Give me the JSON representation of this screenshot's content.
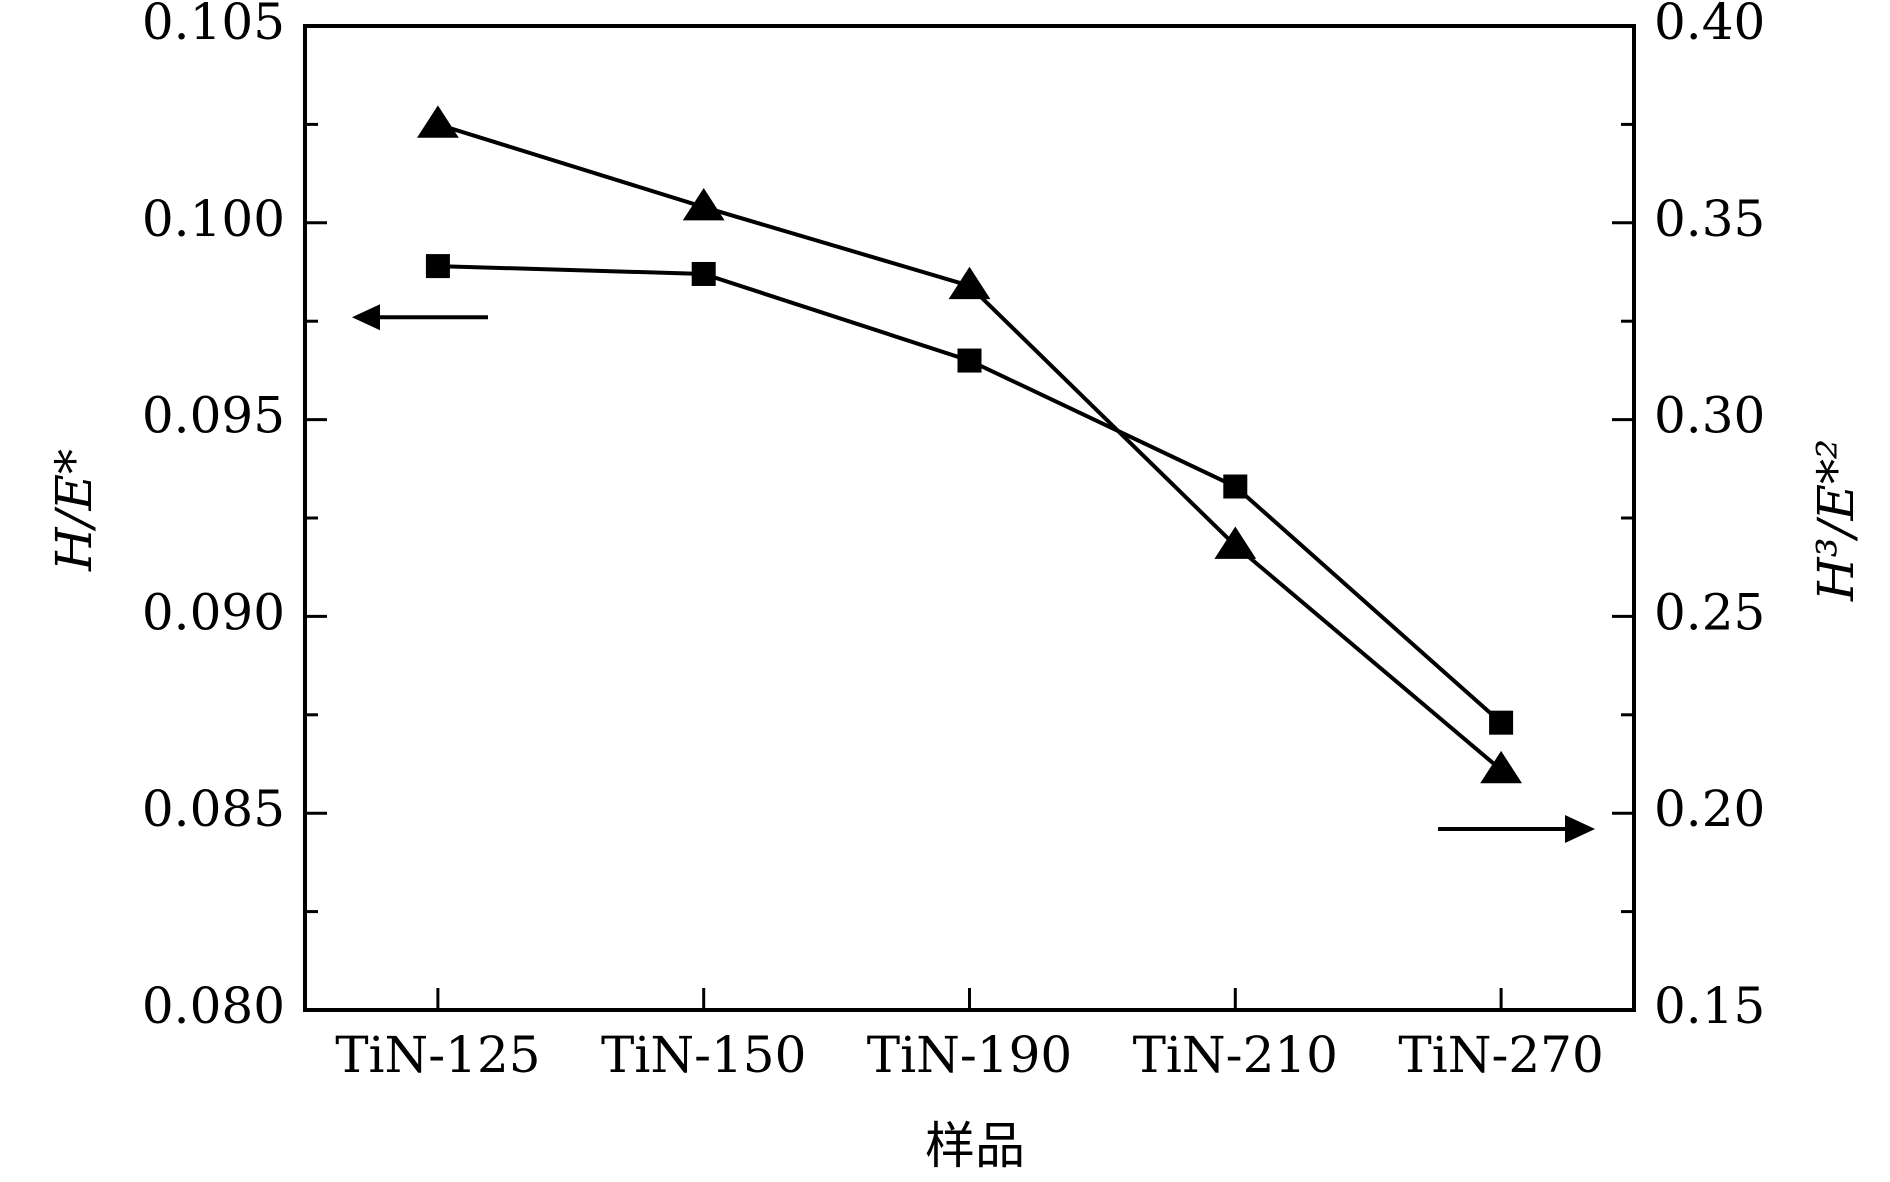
{
  "chart_data": {
    "type": "line",
    "categories": [
      "TiN-125",
      "TiN-150",
      "TiN-190",
      "TiN-210",
      "TiN-270"
    ],
    "xlabel": "样品",
    "ylabel_left": "H/E*",
    "ylabel_right": "H³/E*²",
    "ylim_left": [
      0.08,
      0.105
    ],
    "ylim_right": [
      0.15,
      0.4
    ],
    "yticks_left": [
      "0.080",
      "0.085",
      "0.090",
      "0.095",
      "0.100",
      "0.105"
    ],
    "yticks_right": [
      "0.15",
      "0.20",
      "0.25",
      "0.30",
      "0.35",
      "0.40"
    ],
    "series": [
      {
        "axis": "left",
        "marker": "square",
        "values": [
          0.0989,
          0.0987,
          0.0965,
          0.0933,
          0.0873
        ]
      },
      {
        "axis": "right",
        "marker": "triangle",
        "values": [
          0.375,
          0.354,
          0.334,
          0.268,
          0.211
        ]
      }
    ],
    "annotations": [
      {
        "type": "arrow",
        "points_to": "left-axis",
        "series_marker": "square"
      },
      {
        "type": "arrow",
        "points_to": "right-axis",
        "series_marker": "triangle"
      }
    ],
    "grid": false,
    "colors": {
      "line": "#000000",
      "marker": "#000000",
      "background": "#ffffff"
    }
  }
}
